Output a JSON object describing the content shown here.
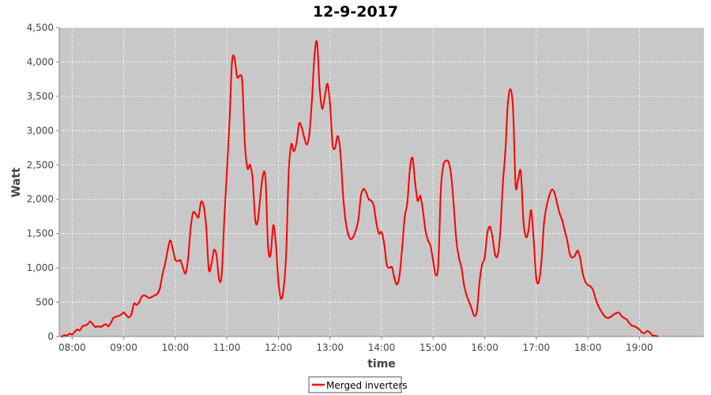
{
  "chart_data": {
    "type": "line",
    "title": "12-9-2017",
    "xlabel": "time",
    "ylabel": "Watt",
    "xlim": [
      "07:45",
      "20:15"
    ],
    "ylim": [
      0,
      4500
    ],
    "grid": true,
    "legend_position": "bottom-center",
    "x_ticks": [
      "08:00",
      "09:00",
      "10:00",
      "11:00",
      "12:00",
      "13:00",
      "14:00",
      "15:00",
      "16:00",
      "17:00",
      "18:00",
      "19:00"
    ],
    "y_ticks": [
      "0",
      "500",
      "1,000",
      "1,500",
      "2,000",
      "2,500",
      "3,000",
      "3,500",
      "4,000",
      "4,500"
    ],
    "series": [
      {
        "name": "Merged inverters",
        "color": "#ff0000",
        "points": [
          [
            "07:48",
            0
          ],
          [
            "07:51",
            20
          ],
          [
            "07:54",
            15
          ],
          [
            "07:57",
            40
          ],
          [
            "08:00",
            30
          ],
          [
            "08:03",
            70
          ],
          [
            "08:06",
            100
          ],
          [
            "08:09",
            90
          ],
          [
            "08:12",
            150
          ],
          [
            "08:15",
            160
          ],
          [
            "08:18",
            180
          ],
          [
            "08:21",
            220
          ],
          [
            "08:24",
            180
          ],
          [
            "08:27",
            140
          ],
          [
            "08:30",
            150
          ],
          [
            "08:33",
            140
          ],
          [
            "08:36",
            160
          ],
          [
            "08:39",
            180
          ],
          [
            "08:42",
            150
          ],
          [
            "08:45",
            200
          ],
          [
            "08:48",
            270
          ],
          [
            "08:51",
            290
          ],
          [
            "08:54",
            300
          ],
          [
            "08:57",
            320
          ],
          [
            "09:00",
            350
          ],
          [
            "09:03",
            310
          ],
          [
            "09:06",
            280
          ],
          [
            "09:09",
            330
          ],
          [
            "09:12",
            480
          ],
          [
            "09:15",
            460
          ],
          [
            "09:18",
            500
          ],
          [
            "09:21",
            580
          ],
          [
            "09:24",
            600
          ],
          [
            "09:27",
            580
          ],
          [
            "09:30",
            560
          ],
          [
            "09:33",
            580
          ],
          [
            "09:36",
            600
          ],
          [
            "09:39",
            620
          ],
          [
            "09:42",
            700
          ],
          [
            "09:45",
            900
          ],
          [
            "09:48",
            1050
          ],
          [
            "09:51",
            1250
          ],
          [
            "09:54",
            1400
          ],
          [
            "09:57",
            1280
          ],
          [
            "10:00",
            1120
          ],
          [
            "10:03",
            1100
          ],
          [
            "10:06",
            1110
          ],
          [
            "10:09",
            1000
          ],
          [
            "10:12",
            920
          ],
          [
            "10:15",
            1150
          ],
          [
            "10:18",
            1600
          ],
          [
            "10:21",
            1810
          ],
          [
            "10:24",
            1780
          ],
          [
            "10:27",
            1740
          ],
          [
            "10:30",
            1960
          ],
          [
            "10:33",
            1900
          ],
          [
            "10:36",
            1600
          ],
          [
            "10:39",
            980
          ],
          [
            "10:42",
            1050
          ],
          [
            "10:45",
            1260
          ],
          [
            "10:48",
            1180
          ],
          [
            "10:51",
            830
          ],
          [
            "10:54",
            900
          ],
          [
            "10:57",
            1700
          ],
          [
            "11:00",
            2400
          ],
          [
            "11:03",
            3100
          ],
          [
            "11:06",
            4000
          ],
          [
            "11:09",
            4050
          ],
          [
            "11:12",
            3780
          ],
          [
            "11:15",
            3800
          ],
          [
            "11:18",
            3700
          ],
          [
            "11:21",
            2800
          ],
          [
            "11:24",
            2450
          ],
          [
            "11:27",
            2500
          ],
          [
            "11:30",
            2300
          ],
          [
            "11:33",
            1700
          ],
          [
            "11:36",
            1680
          ],
          [
            "11:39",
            2050
          ],
          [
            "11:42",
            2350
          ],
          [
            "11:45",
            2300
          ],
          [
            "11:48",
            1300
          ],
          [
            "11:51",
            1200
          ],
          [
            "11:54",
            1620
          ],
          [
            "11:57",
            1350
          ],
          [
            "12:00",
            800
          ],
          [
            "12:03",
            550
          ],
          [
            "12:06",
            700
          ],
          [
            "12:09",
            1200
          ],
          [
            "12:12",
            2400
          ],
          [
            "12:15",
            2800
          ],
          [
            "12:18",
            2700
          ],
          [
            "12:21",
            2820
          ],
          [
            "12:24",
            3100
          ],
          [
            "12:27",
            3050
          ],
          [
            "12:30",
            2900
          ],
          [
            "12:33",
            2800
          ],
          [
            "12:36",
            2950
          ],
          [
            "12:39",
            3450
          ],
          [
            "12:42",
            4100
          ],
          [
            "12:45",
            4280
          ],
          [
            "12:48",
            3600
          ],
          [
            "12:51",
            3320
          ],
          [
            "12:54",
            3500
          ],
          [
            "12:57",
            3680
          ],
          [
            "13:00",
            3400
          ],
          [
            "13:03",
            2800
          ],
          [
            "13:06",
            2750
          ],
          [
            "13:09",
            2920
          ],
          [
            "13:12",
            2700
          ],
          [
            "13:15",
            2100
          ],
          [
            "13:18",
            1700
          ],
          [
            "13:21",
            1500
          ],
          [
            "13:24",
            1420
          ],
          [
            "13:27",
            1450
          ],
          [
            "13:30",
            1550
          ],
          [
            "13:33",
            1700
          ],
          [
            "13:36",
            2050
          ],
          [
            "13:39",
            2150
          ],
          [
            "13:42",
            2100
          ],
          [
            "13:45",
            2000
          ],
          [
            "13:48",
            1980
          ],
          [
            "13:51",
            1900
          ],
          [
            "13:54",
            1650
          ],
          [
            "13:57",
            1500
          ],
          [
            "14:00",
            1520
          ],
          [
            "14:03",
            1350
          ],
          [
            "14:06",
            1050
          ],
          [
            "14:09",
            1000
          ],
          [
            "14:12",
            1010
          ],
          [
            "14:15",
            850
          ],
          [
            "14:18",
            760
          ],
          [
            "14:21",
            900
          ],
          [
            "14:24",
            1300
          ],
          [
            "14:27",
            1750
          ],
          [
            "14:30",
            1950
          ],
          [
            "14:33",
            2450
          ],
          [
            "14:36",
            2600
          ],
          [
            "14:39",
            2250
          ],
          [
            "14:42",
            1980
          ],
          [
            "14:45",
            2050
          ],
          [
            "14:48",
            1850
          ],
          [
            "14:51",
            1550
          ],
          [
            "14:54",
            1400
          ],
          [
            "14:57",
            1320
          ],
          [
            "15:00",
            1100
          ],
          [
            "15:03",
            900
          ],
          [
            "15:06",
            1050
          ],
          [
            "15:09",
            2150
          ],
          [
            "15:12",
            2500
          ],
          [
            "15:15",
            2560
          ],
          [
            "15:18",
            2540
          ],
          [
            "15:21",
            2350
          ],
          [
            "15:24",
            1900
          ],
          [
            "15:27",
            1400
          ],
          [
            "15:30",
            1150
          ],
          [
            "15:33",
            1000
          ],
          [
            "15:36",
            750
          ],
          [
            "15:39",
            600
          ],
          [
            "15:42",
            500
          ],
          [
            "15:45",
            400
          ],
          [
            "15:48",
            300
          ],
          [
            "15:51",
            380
          ],
          [
            "15:54",
            800
          ],
          [
            "15:57",
            1050
          ],
          [
            "16:00",
            1150
          ],
          [
            "16:03",
            1500
          ],
          [
            "16:06",
            1600
          ],
          [
            "16:09",
            1450
          ],
          [
            "16:12",
            1200
          ],
          [
            "16:15",
            1180
          ],
          [
            "16:18",
            1500
          ],
          [
            "16:21",
            2200
          ],
          [
            "16:24",
            2700
          ],
          [
            "16:27",
            3400
          ],
          [
            "16:30",
            3600
          ],
          [
            "16:33",
            3300
          ],
          [
            "16:36",
            2200
          ],
          [
            "16:39",
            2300
          ],
          [
            "16:42",
            2400
          ],
          [
            "16:45",
            1700
          ],
          [
            "16:48",
            1450
          ],
          [
            "16:51",
            1550
          ],
          [
            "16:54",
            1840
          ],
          [
            "16:57",
            1400
          ],
          [
            "17:00",
            850
          ],
          [
            "17:03",
            800
          ],
          [
            "17:06",
            1100
          ],
          [
            "17:09",
            1650
          ],
          [
            "17:12",
            1900
          ],
          [
            "17:15",
            2050
          ],
          [
            "17:18",
            2140
          ],
          [
            "17:21",
            2100
          ],
          [
            "17:24",
            1950
          ],
          [
            "17:27",
            1800
          ],
          [
            "17:30",
            1700
          ],
          [
            "17:33",
            1550
          ],
          [
            "17:36",
            1400
          ],
          [
            "17:39",
            1200
          ],
          [
            "17:42",
            1150
          ],
          [
            "17:45",
            1180
          ],
          [
            "17:48",
            1250
          ],
          [
            "17:51",
            1150
          ],
          [
            "17:54",
            920
          ],
          [
            "17:57",
            800
          ],
          [
            "18:00",
            750
          ],
          [
            "18:03",
            730
          ],
          [
            "18:06",
            680
          ],
          [
            "18:09",
            550
          ],
          [
            "18:12",
            450
          ],
          [
            "18:15",
            380
          ],
          [
            "18:18",
            320
          ],
          [
            "18:21",
            280
          ],
          [
            "18:24",
            270
          ],
          [
            "18:27",
            290
          ],
          [
            "18:30",
            320
          ],
          [
            "18:33",
            340
          ],
          [
            "18:36",
            350
          ],
          [
            "18:39",
            300
          ],
          [
            "18:42",
            270
          ],
          [
            "18:45",
            250
          ],
          [
            "18:48",
            200
          ],
          [
            "18:51",
            160
          ],
          [
            "18:54",
            150
          ],
          [
            "18:57",
            130
          ],
          [
            "19:00",
            100
          ],
          [
            "19:03",
            60
          ],
          [
            "19:06",
            50
          ],
          [
            "19:09",
            80
          ],
          [
            "19:12",
            60
          ],
          [
            "19:15",
            20
          ],
          [
            "19:18",
            10
          ],
          [
            "19:21",
            5
          ]
        ]
      }
    ]
  }
}
